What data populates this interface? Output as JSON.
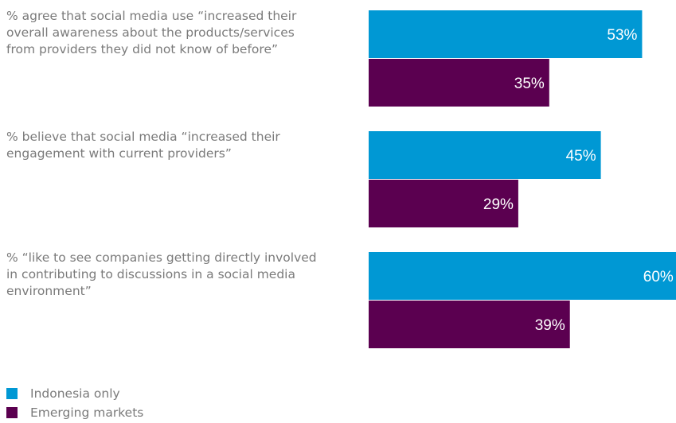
{
  "chart_data": {
    "type": "bar",
    "orientation": "horizontal",
    "categories": [
      "% agree that social media use “increased their overall awareness about the products/services from providers they did not know of before”",
      "% believe that social media “increased their engagement with current providers”",
      "% “like to see companies getting directly involved in contributing to discussions in a social media environment”"
    ],
    "series": [
      {
        "name": "Indonesia only",
        "color": "#0098d4",
        "values": [
          53,
          45,
          60
        ],
        "labels": [
          "53%",
          "45%",
          "60%"
        ]
      },
      {
        "name": "Emerging markets",
        "color": "#5b0050",
        "values": [
          35,
          29,
          39
        ],
        "labels": [
          "35%",
          "29%",
          "39%"
        ]
      }
    ],
    "xlim": [
      0,
      60
    ],
    "grid": false,
    "legend_position": "bottom-left"
  }
}
